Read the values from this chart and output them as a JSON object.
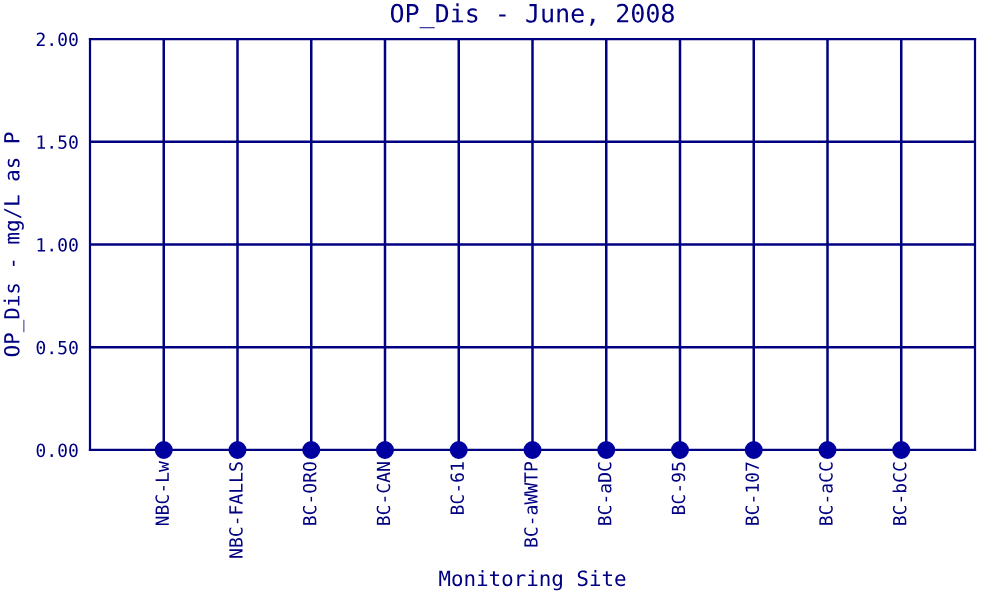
{
  "chart_data": {
    "type": "scatter",
    "title": "OP_Dis - June, 2008",
    "xlabel": "Monitoring Site",
    "ylabel": "OP_Dis - mg/L as P",
    "categories": [
      "NBC-Lw",
      "NBC-FALLS",
      "BC-ORO",
      "BC-CAN",
      "BC-61",
      "BC-aWWTP",
      "BC-aDC",
      "BC-95",
      "BC-107",
      "BC-aCC",
      "BC-bCC"
    ],
    "series": [
      {
        "color": "#0000a0",
        "values": [
          0,
          0,
          0,
          0,
          0,
          0,
          0,
          0,
          0,
          0,
          0
        ]
      }
    ],
    "ylim": [
      0,
      2
    ],
    "yticks": [
      {
        "value": 0,
        "label": "0.00"
      },
      {
        "value": 0.5,
        "label": "0.50"
      },
      {
        "value": 1,
        "label": "1.00"
      },
      {
        "value": 1.5,
        "label": "1.50"
      },
      {
        "value": 2,
        "label": "2.00"
      }
    ],
    "grid": true,
    "marker": "circle",
    "legend": false
  }
}
